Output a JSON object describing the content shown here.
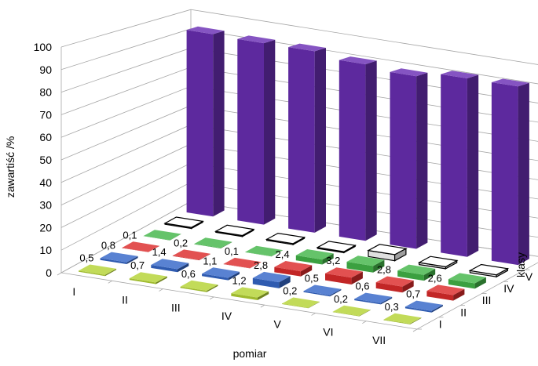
{
  "chart_data": {
    "type": "bar3d",
    "ylabel": "zawartiść /%",
    "xlabel": "pomiar",
    "zlabel": "klasy",
    "ylim": [
      0,
      100
    ],
    "yticks": [
      "0",
      "10",
      "20",
      "30",
      "40",
      "50",
      "60",
      "70",
      "80",
      "90",
      "100"
    ],
    "categories": [
      "I",
      "II",
      "III",
      "IV",
      "V",
      "VI",
      "VII"
    ],
    "series": [
      {
        "name": "I",
        "color": "#b5d334",
        "values": [
          0.5,
          0.7,
          0.6,
          1.2,
          0.2,
          0.2,
          0.3
        ],
        "labels": [
          "0,5",
          "0,7",
          "0,6",
          "1,2",
          "0,2",
          "0,2",
          "0,3"
        ]
      },
      {
        "name": "II",
        "color": "#3567c8",
        "values": [
          0.8,
          1.4,
          1.1,
          2.8,
          0.5,
          0.6,
          0.7
        ],
        "labels": [
          "0,8",
          "1,4",
          "1,1",
          "2,8",
          "0,5",
          "0,6",
          "0,7"
        ]
      },
      {
        "name": "III",
        "color": "#dc2b2b",
        "values": [
          0.1,
          0.2,
          0.1,
          2.4,
          3.2,
          2.8,
          2.6
        ],
        "labels": [
          "0,1",
          "0,2",
          "0,1",
          "2,4",
          "3,2",
          "2,8",
          "2,6"
        ]
      },
      {
        "name": "IV",
        "color": "#43b649",
        "values": [
          0.1,
          0.2,
          0.1,
          2.4,
          3.2,
          2.8,
          2.6
        ],
        "labels": [
          "",
          "",
          "",
          "",
          "",
          "",
          ""
        ]
      },
      {
        "name": "V",
        "color": "#ffffff",
        "values": [
          0.5,
          0.5,
          0.5,
          0.5,
          3.0,
          1.0,
          1.0
        ],
        "labels": [
          "",
          "",
          "",
          "",
          "",
          "",
          ""
        ]
      },
      {
        "name": "VI",
        "color": "#6a2fb4",
        "values": [
          93.0,
          92.5,
          92.5,
          90.0,
          88.0,
          91.0,
          91.0
        ],
        "labels": [
          "",
          "",
          "",
          "",
          "",
          "",
          ""
        ]
      }
    ]
  }
}
